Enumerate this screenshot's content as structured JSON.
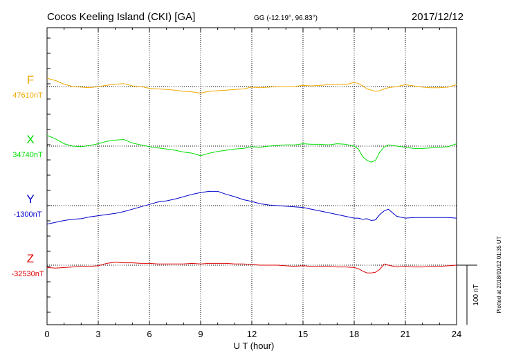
{
  "header": {
    "station": "Cocos Keeling Island (CKI)  [GA]",
    "coords": "GG (-12.19°,  96.83°)",
    "date": "2017/12/12"
  },
  "footer": {
    "plotted": "Plotted at 2018/01/12 01:35 UT"
  },
  "chart_data": {
    "type": "line",
    "xlabel": "U T (hour)",
    "xlim": [
      0,
      24
    ],
    "xticks": [
      0,
      3,
      6,
      9,
      12,
      15,
      18,
      21,
      24
    ],
    "scale_bar_label": "100 nT",
    "scale_bar_nT": 100,
    "grid": true,
    "series": [
      {
        "name": "F",
        "baseline_label": "47610nT",
        "baseline_nT": 47610,
        "color": "#f0a800",
        "x": [
          0,
          0.5,
          1,
          1.5,
          2,
          2.5,
          3,
          3.5,
          4,
          4.5,
          5,
          5.5,
          6,
          6.5,
          7,
          7.5,
          8,
          8.5,
          9,
          9.5,
          10,
          10.5,
          11,
          11.5,
          12,
          12.5,
          13,
          13.5,
          14,
          14.5,
          15,
          15.5,
          16,
          16.5,
          17,
          17.5,
          18,
          18.25,
          18.5,
          18.75,
          19,
          19.25,
          19.5,
          19.75,
          20,
          20.5,
          21,
          21.5,
          22,
          22.5,
          23,
          23.5,
          24
        ],
        "y": [
          47624,
          47620,
          47614,
          47610,
          47609,
          47608,
          47610,
          47612,
          47614,
          47615,
          47611,
          47610,
          47607,
          47606,
          47605,
          47604,
          47602,
          47601,
          47599,
          47602,
          47603,
          47604,
          47605,
          47606,
          47609,
          47608,
          47609,
          47610,
          47610,
          47610,
          47612,
          47611,
          47612,
          47613,
          47614,
          47613,
          47617,
          47615,
          47611,
          47606,
          47604,
          47602,
          47603,
          47606,
          47608,
          47610,
          47613,
          47611,
          47609,
          47608,
          47608,
          47609,
          47613
        ]
      },
      {
        "name": "X",
        "baseline_label": "34740nT",
        "baseline_nT": 34740,
        "color": "#00dd00",
        "x": [
          0,
          0.5,
          1,
          1.5,
          2,
          2.5,
          3,
          3.5,
          4,
          4.5,
          5,
          5.5,
          6,
          6.5,
          7,
          7.5,
          8,
          8.5,
          9,
          9.5,
          10,
          10.5,
          11,
          11.5,
          12,
          12.5,
          13,
          13.5,
          14,
          14.5,
          15,
          15.5,
          16,
          16.5,
          17,
          17.5,
          18,
          18.25,
          18.5,
          18.75,
          19,
          19.25,
          19.5,
          19.75,
          20,
          20.5,
          21,
          21.5,
          22,
          22.5,
          23,
          23.5,
          24
        ],
        "y": [
          34758,
          34752,
          34744,
          34740,
          34739,
          34741,
          34744,
          34748,
          34750,
          34751,
          34745,
          34742,
          34739,
          34737,
          34735,
          34733,
          34730,
          34728,
          34724,
          34728,
          34731,
          34733,
          34735,
          34736,
          34739,
          34738,
          34740,
          34741,
          34742,
          34742,
          34744,
          34743,
          34743,
          34742,
          34744,
          34743,
          34740,
          34735,
          34722,
          34716,
          34713,
          34716,
          34730,
          34738,
          34742,
          34740,
          34738,
          34736,
          34736,
          34737,
          34738,
          34739,
          34744
        ]
      },
      {
        "name": "Y",
        "baseline_label": "-1300nT",
        "baseline_nT": -1300,
        "color": "#0000cc",
        "x": [
          0,
          0.5,
          1,
          1.5,
          2,
          2.5,
          3,
          3.5,
          4,
          4.5,
          5,
          5.5,
          6,
          6.5,
          7,
          7.5,
          8,
          8.5,
          9,
          9.5,
          10,
          10.5,
          11,
          11.5,
          12,
          12.5,
          13,
          13.5,
          14,
          14.5,
          15,
          15.5,
          16,
          16.5,
          17,
          17.5,
          18,
          18.25,
          18.5,
          18.75,
          19,
          19.25,
          19.5,
          19.75,
          20,
          20.5,
          21,
          21.5,
          22,
          22.5,
          23,
          23.5,
          24
        ],
        "y": [
          -1331,
          -1328,
          -1325,
          -1323,
          -1322,
          -1319,
          -1317,
          -1315,
          -1313,
          -1310,
          -1306,
          -1302,
          -1298,
          -1294,
          -1292,
          -1289,
          -1285,
          -1281,
          -1278,
          -1276,
          -1276,
          -1281,
          -1285,
          -1290,
          -1293,
          -1297,
          -1299,
          -1300,
          -1301,
          -1302,
          -1303,
          -1306,
          -1309,
          -1312,
          -1315,
          -1318,
          -1321,
          -1321,
          -1323,
          -1322,
          -1325,
          -1324,
          -1315,
          -1309,
          -1306,
          -1318,
          -1321,
          -1320,
          -1320,
          -1320,
          -1320,
          -1320,
          -1321
        ]
      },
      {
        "name": "Z",
        "baseline_label": "-32530nT",
        "baseline_nT": -32530,
        "color": "#dd0000",
        "x": [
          0,
          0.5,
          1,
          1.5,
          2,
          2.5,
          3,
          3.5,
          4,
          4.5,
          5,
          5.5,
          6,
          6.5,
          7,
          7.5,
          8,
          8.5,
          9,
          9.5,
          10,
          10.5,
          11,
          11.5,
          12,
          12.5,
          13,
          13.5,
          14,
          14.5,
          15,
          15.5,
          16,
          16.5,
          17,
          17.5,
          18,
          18.25,
          18.5,
          18.75,
          19,
          19.25,
          19.5,
          19.75,
          20,
          20.5,
          21,
          21.5,
          22,
          22.5,
          23,
          23.5,
          24
        ],
        "y": [
          -32534,
          -32535,
          -32534,
          -32533,
          -32532,
          -32532,
          -32531,
          -32527,
          -32525,
          -32526,
          -32526,
          -32527,
          -32527,
          -32528,
          -32528,
          -32528,
          -32528,
          -32527,
          -32528,
          -32527,
          -32527,
          -32527,
          -32528,
          -32528,
          -32529,
          -32530,
          -32530,
          -32530,
          -32531,
          -32532,
          -32531,
          -32532,
          -32532,
          -32532,
          -32533,
          -32533,
          -32534,
          -32536,
          -32540,
          -32543,
          -32543,
          -32542,
          -32537,
          -32528,
          -32530,
          -32533,
          -32532,
          -32533,
          -32533,
          -32532,
          -32532,
          -32531,
          -32530
        ]
      }
    ]
  }
}
